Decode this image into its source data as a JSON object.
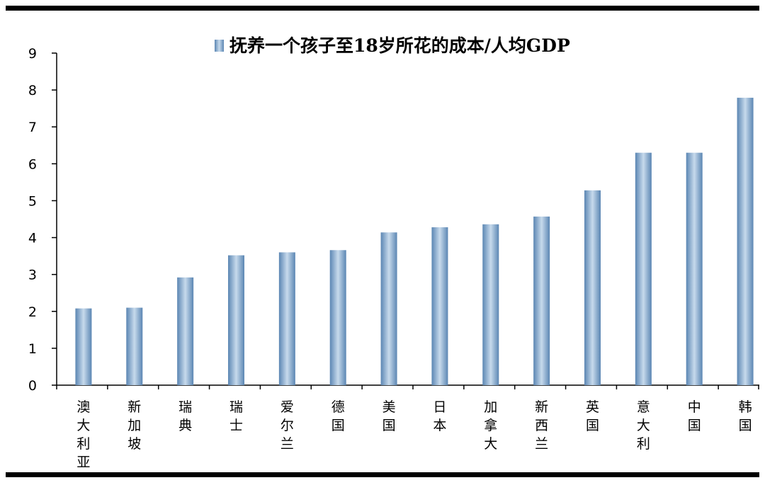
{
  "chart_data": {
    "type": "bar",
    "legend": "抚养一个孩子至18岁所花的成本/人均GDP",
    "categories": [
      "澳大利亚",
      "新加坡",
      "瑞典",
      "瑞士",
      "爱尔兰",
      "德国",
      "美国",
      "日本",
      "加拿大",
      "新西兰",
      "英国",
      "意大利",
      "中国",
      "韩国"
    ],
    "series": [
      {
        "name": "抚养一个孩子至18岁所花的成本/人均GDP",
        "values": [
          2.08,
          2.1,
          2.92,
          3.52,
          3.6,
          3.66,
          4.14,
          4.28,
          4.36,
          4.57,
          5.28,
          6.3,
          6.3,
          7.79
        ]
      }
    ],
    "yticks": [
      "0",
      "1",
      "2",
      "3",
      "4",
      "5",
      "6",
      "7",
      "8",
      "9"
    ],
    "ylim": [
      0,
      9
    ],
    "grid": false,
    "legend_position": "top-right",
    "colors": {
      "bar_dark": "#5b86b3",
      "bar_light": "#c7daec",
      "axis": "#000000"
    }
  }
}
